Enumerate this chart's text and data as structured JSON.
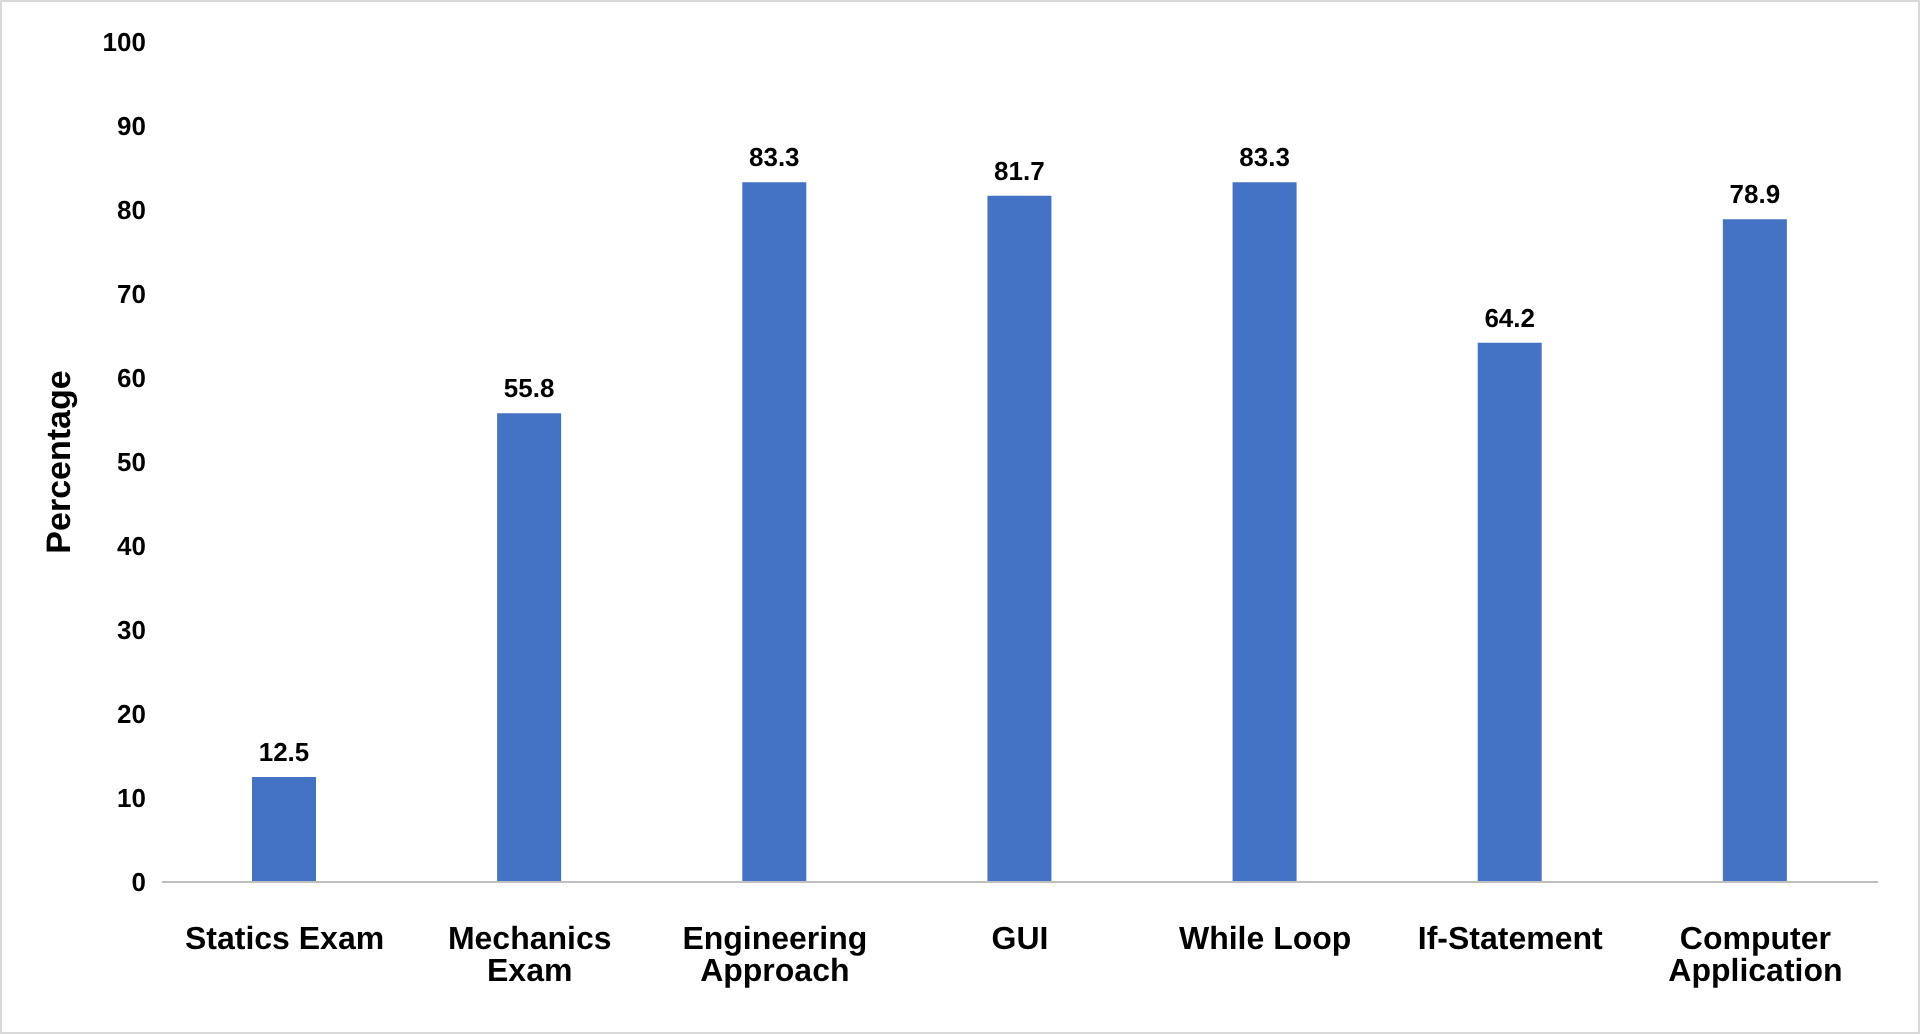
{
  "chart_data": {
    "type": "bar",
    "ylabel": "Percentage",
    "categories": [
      "Statics Exam",
      "Mechanics Exam",
      "Engineering Approach",
      "GUI",
      "While Loop",
      "If-Statement",
      "Computer Application"
    ],
    "values": [
      12.5,
      55.8,
      83.3,
      81.7,
      83.3,
      64.2,
      78.9
    ],
    "color": "#4472c4",
    "ylim": [
      0,
      100
    ],
    "yticks": [
      0,
      10,
      20,
      30,
      40,
      50,
      60,
      70,
      80,
      90,
      100
    ],
    "data_labels": true
  }
}
